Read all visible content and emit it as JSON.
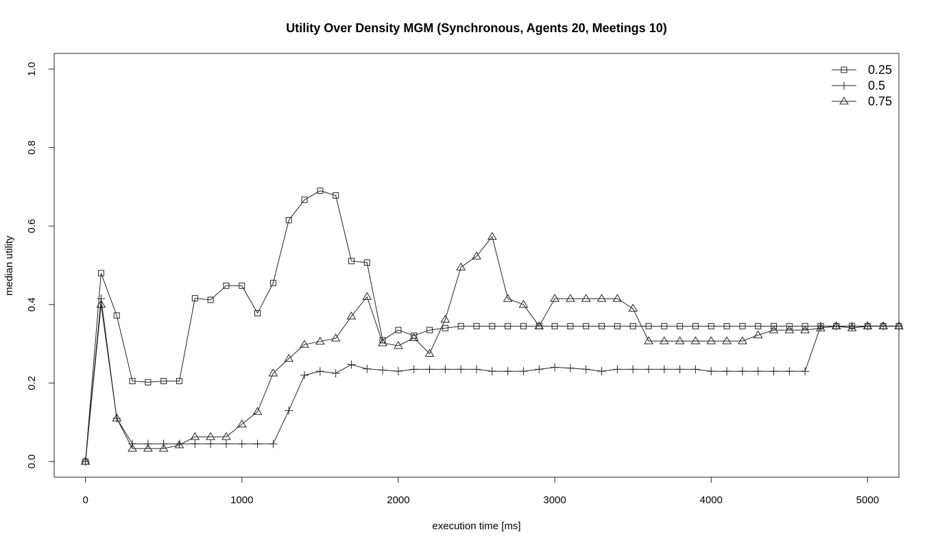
{
  "chart_data": {
    "type": "line",
    "title": "Utility Over Density MGM (Synchronous, Agents 20, Meetings 10)",
    "xlabel": "execution time [ms]",
    "ylabel": "median utility",
    "xlim": [
      -200,
      5200
    ],
    "ylim": [
      -0.04,
      1.04
    ],
    "x_ticks": [
      0,
      1000,
      2000,
      3000,
      4000,
      5000
    ],
    "y_ticks": [
      0.0,
      0.2,
      0.4,
      0.6,
      0.8,
      1.0
    ],
    "x_tick_labels": [
      "0",
      "1000",
      "2000",
      "3000",
      "4000",
      "5000"
    ],
    "y_tick_labels": [
      "0.0",
      "0.2",
      "0.4",
      "0.6",
      "0.8",
      "1.0"
    ],
    "legend_position": "top-right",
    "x": [
      0,
      100,
      200,
      300,
      400,
      500,
      600,
      700,
      800,
      900,
      1000,
      1100,
      1200,
      1300,
      1400,
      1500,
      1600,
      1700,
      1800,
      1900,
      2000,
      2100,
      2200,
      2300,
      2400,
      2500,
      2600,
      2700,
      2800,
      2900,
      3000,
      3100,
      3200,
      3300,
      3400,
      3500,
      3600,
      3700,
      3800,
      3900,
      4000,
      4100,
      4200,
      4300,
      4400,
      4500,
      4600,
      4700,
      4800,
      4900,
      5000,
      5100,
      5200
    ],
    "series": [
      {
        "name": "0.25",
        "marker": "square",
        "values": [
          0.0,
          0.48,
          0.372,
          0.205,
          0.202,
          0.205,
          0.205,
          0.416,
          0.412,
          0.448,
          0.448,
          0.378,
          0.455,
          0.615,
          0.667,
          0.69,
          0.678,
          0.511,
          0.507,
          0.309,
          0.335,
          0.321,
          0.335,
          0.34,
          0.345,
          0.345,
          0.345,
          0.345,
          0.345,
          0.345,
          0.345,
          0.345,
          0.345,
          0.345,
          0.345,
          0.345,
          0.345,
          0.345,
          0.345,
          0.345,
          0.345,
          0.345,
          0.345,
          0.345,
          0.345,
          0.345,
          0.345,
          0.345,
          0.345,
          0.345,
          0.345,
          0.345,
          0.345
        ]
      },
      {
        "name": "0.5",
        "marker": "plus",
        "values": [
          0.0,
          0.415,
          0.11,
          0.045,
          0.045,
          0.045,
          0.045,
          0.045,
          0.045,
          0.045,
          0.045,
          0.045,
          0.045,
          0.13,
          0.22,
          0.23,
          0.225,
          0.247,
          0.236,
          0.233,
          0.23,
          0.235,
          0.235,
          0.235,
          0.235,
          0.235,
          0.23,
          0.23,
          0.23,
          0.235,
          0.24,
          0.238,
          0.235,
          0.23,
          0.235,
          0.235,
          0.235,
          0.235,
          0.235,
          0.235,
          0.23,
          0.23,
          0.23,
          0.23,
          0.23,
          0.23,
          0.23,
          0.345,
          0.345,
          0.345,
          0.345,
          0.345,
          0.345
        ]
      },
      {
        "name": "0.75",
        "marker": "triangle",
        "values": [
          0.0,
          0.4,
          0.11,
          0.033,
          0.033,
          0.033,
          0.042,
          0.063,
          0.063,
          0.063,
          0.095,
          0.127,
          0.225,
          0.262,
          0.298,
          0.306,
          0.314,
          0.37,
          0.42,
          0.302,
          0.295,
          0.315,
          0.275,
          0.362,
          0.495,
          0.523,
          0.573,
          0.415,
          0.4,
          0.345,
          0.415,
          0.415,
          0.415,
          0.415,
          0.415,
          0.39,
          0.307,
          0.307,
          0.307,
          0.307,
          0.307,
          0.307,
          0.307,
          0.322,
          0.335,
          0.335,
          0.335,
          0.34,
          0.345,
          0.34,
          0.345,
          0.345,
          0.345
        ]
      }
    ]
  }
}
